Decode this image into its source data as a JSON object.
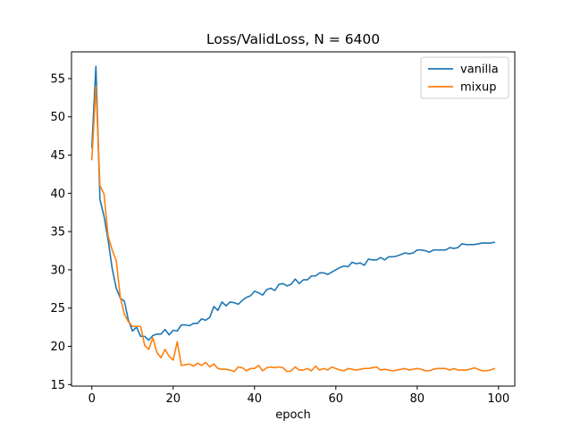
{
  "chart_data": {
    "type": "line",
    "title": "Loss/ValidLoss, N = 6400",
    "xlabel": "epoch",
    "ylabel": "",
    "xlim": [
      -5,
      104
    ],
    "ylim": [
      14.8,
      58.5
    ],
    "xticks": [
      0,
      20,
      40,
      60,
      80,
      100
    ],
    "yticks": [
      15,
      20,
      25,
      30,
      35,
      40,
      45,
      50,
      55
    ],
    "grid": false,
    "legend_position": "top-right",
    "series": [
      {
        "name": "vanilla",
        "color": "#1f77b4",
        "x": [
          0,
          1,
          2,
          3,
          4,
          5,
          6,
          7,
          8,
          9,
          10,
          11,
          12,
          13,
          14,
          15,
          16,
          17,
          18,
          19,
          20,
          21,
          22,
          23,
          24,
          25,
          26,
          27,
          28,
          29,
          30,
          31,
          32,
          33,
          34,
          35,
          36,
          37,
          38,
          39,
          40,
          41,
          42,
          43,
          44,
          45,
          46,
          47,
          48,
          49,
          50,
          51,
          52,
          53,
          54,
          55,
          56,
          57,
          58,
          59,
          60,
          61,
          62,
          63,
          64,
          65,
          66,
          67,
          68,
          69,
          70,
          71,
          72,
          73,
          74,
          75,
          76,
          77,
          78,
          79,
          80,
          81,
          82,
          83,
          84,
          85,
          86,
          87,
          88,
          89,
          90,
          91,
          92,
          93,
          94,
          95,
          96,
          97,
          98,
          99
        ],
        "values": [
          46.0,
          56.6,
          39.2,
          37.0,
          33.9,
          30.2,
          27.6,
          26.3,
          25.9,
          23.4,
          22.0,
          22.5,
          21.3,
          21.3,
          20.8,
          21.4,
          21.6,
          21.6,
          22.2,
          21.5,
          22.1,
          22.0,
          22.8,
          22.8,
          22.7,
          23.0,
          23.0,
          23.6,
          23.4,
          23.8,
          25.2,
          24.7,
          25.8,
          25.3,
          25.8,
          25.7,
          25.5,
          26.0,
          26.4,
          26.6,
          27.2,
          27.0,
          26.7,
          27.4,
          27.6,
          27.3,
          28.1,
          28.2,
          27.9,
          28.1,
          28.8,
          28.2,
          28.7,
          28.7,
          29.2,
          29.2,
          29.6,
          29.6,
          29.4,
          29.7,
          30.0,
          30.3,
          30.5,
          30.4,
          31.0,
          30.8,
          30.9,
          30.6,
          31.4,
          31.3,
          31.3,
          31.6,
          31.3,
          31.7,
          31.7,
          31.8,
          32.0,
          32.2,
          32.1,
          32.2,
          32.6,
          32.6,
          32.5,
          32.3,
          32.6,
          32.6,
          32.6,
          32.6,
          32.9,
          32.8,
          32.9,
          33.4,
          33.3,
          33.3,
          33.3,
          33.4,
          33.5,
          33.5,
          33.5,
          33.6
        ]
      },
      {
        "name": "mixup",
        "color": "#ff7f0e",
        "x": [
          0,
          1,
          2,
          3,
          4,
          5,
          6,
          7,
          8,
          9,
          10,
          11,
          12,
          13,
          14,
          15,
          16,
          17,
          18,
          19,
          20,
          21,
          22,
          23,
          24,
          25,
          26,
          27,
          28,
          29,
          30,
          31,
          32,
          33,
          34,
          35,
          36,
          37,
          38,
          39,
          40,
          41,
          42,
          43,
          44,
          45,
          46,
          47,
          48,
          49,
          50,
          51,
          52,
          53,
          54,
          55,
          56,
          57,
          58,
          59,
          60,
          61,
          62,
          63,
          64,
          65,
          66,
          67,
          68,
          69,
          70,
          71,
          72,
          73,
          74,
          75,
          76,
          77,
          78,
          79,
          80,
          81,
          82,
          83,
          84,
          85,
          86,
          87,
          88,
          89,
          90,
          91,
          92,
          93,
          94,
          95,
          96,
          97,
          98,
          99
        ],
        "values": [
          44.4,
          54.0,
          41.0,
          39.9,
          34.4,
          32.6,
          31.2,
          26.4,
          24.2,
          23.2,
          22.6,
          22.6,
          22.6,
          20.1,
          19.6,
          21.1,
          19.2,
          18.5,
          19.6,
          18.7,
          18.2,
          20.6,
          17.5,
          17.6,
          17.7,
          17.4,
          17.8,
          17.5,
          17.9,
          17.3,
          17.7,
          17.1,
          17.0,
          17.0,
          16.9,
          16.7,
          17.3,
          17.2,
          16.8,
          17.1,
          17.1,
          17.5,
          16.8,
          17.2,
          17.3,
          17.2,
          17.3,
          17.2,
          16.7,
          16.8,
          17.3,
          16.9,
          16.9,
          17.1,
          16.8,
          17.4,
          16.9,
          17.1,
          16.9,
          17.3,
          17.1,
          16.9,
          16.8,
          17.1,
          17.0,
          16.9,
          17.0,
          17.1,
          17.1,
          17.2,
          17.3,
          16.9,
          17.0,
          16.9,
          16.8,
          16.9,
          17.0,
          17.1,
          16.9,
          17.0,
          17.1,
          17.0,
          16.8,
          16.8,
          17.0,
          17.1,
          17.1,
          17.1,
          16.9,
          17.1,
          16.9,
          16.9,
          16.9,
          17.0,
          17.2,
          17.0,
          16.8,
          16.8,
          16.9,
          17.1
        ]
      }
    ]
  }
}
